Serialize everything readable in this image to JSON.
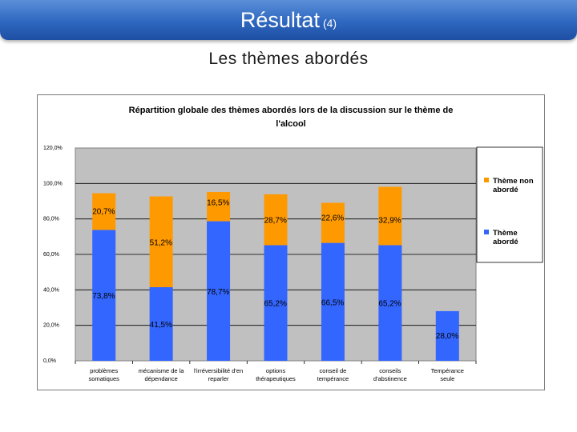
{
  "slide": {
    "title": "Résultat",
    "title_suffix": "(4)",
    "subtitle": "Les thèmes abordés"
  },
  "colors": {
    "theme_aborde": "#3366ff",
    "theme_non_aborde": "#ff9900",
    "plot_background": "#c0c0c0",
    "title_bar": "#2e67c0"
  },
  "chart_data": {
    "type": "bar",
    "stacked": true,
    "title_line1": "Répartition globale des thèmes abordés lors de la discussion sur le thème de",
    "title_line2": "l'alcool",
    "categories": [
      [
        "problèmes",
        "somatiques"
      ],
      [
        "mécanisme de la",
        "dépendance"
      ],
      [
        "l'irréversibilité d'en",
        "reparler"
      ],
      [
        "options",
        "thérapeutiques"
      ],
      [
        "conseil de",
        "tempérance"
      ],
      [
        "conseils",
        "d'abstinence"
      ],
      [
        "Tempérance",
        "seule"
      ]
    ],
    "series": [
      {
        "name": "Thème abordé",
        "legend_lines": [
          "Thème",
          "abordé"
        ],
        "values": [
          73.8,
          41.5,
          78.7,
          65.2,
          66.5,
          65.2,
          28.0
        ],
        "labels": [
          "73,8%",
          "41,5%",
          "78,7%",
          "65,2%",
          "66,5%",
          "65,2%",
          "28,0%"
        ]
      },
      {
        "name": "Thème non abordé",
        "legend_lines": [
          "Thème non",
          "abordé"
        ],
        "values": [
          20.7,
          51.2,
          16.5,
          28.7,
          22.6,
          32.9,
          0
        ],
        "labels": [
          "20,7%",
          "51,2%",
          "16,5%",
          "28,7%",
          "22,6%",
          "32,9%",
          ""
        ]
      }
    ],
    "y_ticks": [
      "0,0%",
      "20,0%",
      "40,0%",
      "60,0%",
      "80,0%",
      "100,0%",
      "120,0%"
    ],
    "ylim": [
      0,
      120
    ],
    "grid": true,
    "legend_position": "right"
  }
}
